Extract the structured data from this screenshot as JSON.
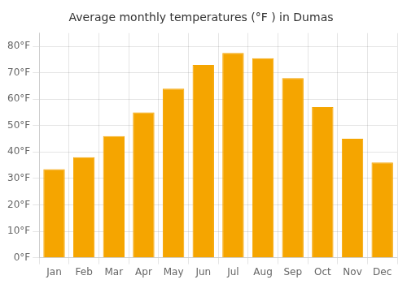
{
  "chart_data": {
    "type": "bar",
    "title": "Average monthly temperatures (°F ) in Dumas",
    "categories": [
      "Jan",
      "Feb",
      "Mar",
      "Apr",
      "May",
      "Jun",
      "Jul",
      "Aug",
      "Sep",
      "Oct",
      "Nov",
      "Dec"
    ],
    "values": [
      33.5,
      38.0,
      46.0,
      55.0,
      64.0,
      73.0,
      77.5,
      75.5,
      68.0,
      57.0,
      45.0,
      36.0
    ],
    "color": "#F5A500",
    "ylim": [
      0,
      85
    ],
    "yticks": [
      {
        "value": 0,
        "label": "0°F"
      },
      {
        "value": 10,
        "label": "10°F"
      },
      {
        "value": 20,
        "label": "20°F"
      },
      {
        "value": 30,
        "label": "30°F"
      },
      {
        "value": 40,
        "label": "40°F"
      },
      {
        "value": 50,
        "label": "50°F"
      },
      {
        "value": 60,
        "label": "60°F"
      },
      {
        "value": 70,
        "label": "70°F"
      },
      {
        "value": 80,
        "label": "80°F"
      }
    ],
    "grid": true
  }
}
